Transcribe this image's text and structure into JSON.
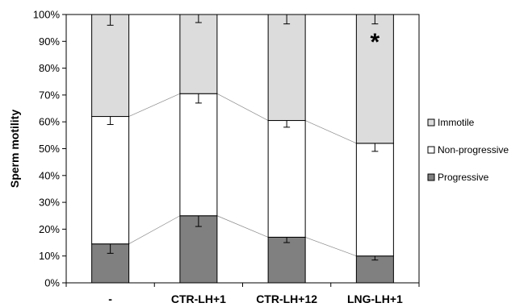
{
  "chart_data": {
    "type": "bar",
    "stacked": true,
    "percent": true,
    "categories": [
      "-",
      "CTR-LH+1",
      "CTR-LH+12",
      "LNG-LH+1"
    ],
    "series": [
      {
        "name": "Progressive",
        "values": [
          14.5,
          25.0,
          17.0,
          10.0
        ],
        "error": [
          3.5,
          4.0,
          2.0,
          1.5
        ],
        "color": "#808080"
      },
      {
        "name": "Non-progressive",
        "values": [
          47.5,
          45.5,
          43.5,
          42.0
        ],
        "error": [
          3.0,
          3.5,
          2.5,
          3.0
        ],
        "color": "#ffffff"
      },
      {
        "name": "Immotile",
        "values": [
          38.0,
          29.5,
          39.5,
          48.0
        ],
        "error": [
          4.0,
          3.0,
          3.5,
          3.5
        ],
        "color": "#dcdcdc"
      }
    ],
    "ylabel": "Sperm motility",
    "xlabel": "",
    "ylim": [
      0,
      100
    ],
    "yticks": [
      "0%",
      "10%",
      "20%",
      "30%",
      "40%",
      "50%",
      "60%",
      "70%",
      "80%",
      "90%",
      "100%"
    ],
    "legend_order": [
      "Immotile",
      "Non-progressive",
      "Progressive"
    ],
    "legend_position": "right",
    "connector_lines": true,
    "annotations": [
      {
        "category": "LNG-LH+1",
        "text": "*"
      }
    ]
  }
}
